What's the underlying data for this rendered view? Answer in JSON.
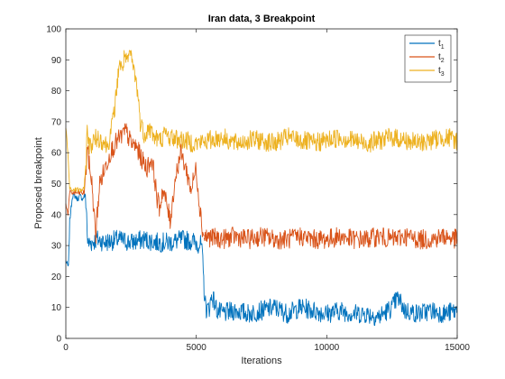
{
  "chart_data": {
    "type": "line",
    "title": "Iran data, 3 Breakpoint",
    "xlabel": "Iterations",
    "ylabel": "Proposed breakpoint",
    "xlim": [
      0,
      15000
    ],
    "ylim": [
      0,
      100
    ],
    "xticks": [
      0,
      5000,
      10000,
      15000
    ],
    "xtick_labels": [
      "0",
      "5000",
      "10000",
      "15000"
    ],
    "yticks": [
      0,
      10,
      20,
      30,
      40,
      50,
      60,
      70,
      80,
      90,
      100
    ],
    "ytick_labels": [
      "0",
      "10",
      "20",
      "30",
      "40",
      "50",
      "60",
      "70",
      "80",
      "90",
      "100"
    ],
    "grid": false,
    "legend_position": "top-right",
    "series": [
      {
        "name": "t1",
        "legend_base": "t",
        "legend_sub": "1",
        "color": "#0072BD",
        "segments": [
          {
            "x": [
              0,
              100,
              150,
              250,
              350,
              450,
              550,
              650,
              700,
              750,
              800,
              820,
              850,
              900,
              1000,
              1200,
              1500,
              2000,
              2500,
              3000,
              3500,
              4000,
              4500,
              5000,
              5200,
              5250,
              5300,
              5350,
              5400,
              5500,
              5600,
              5800,
              6000,
              6500,
              7000,
              7500,
              8000,
              8500,
              9000,
              9500,
              10000,
              10500,
              11000,
              11500,
              12000,
              12500,
              12700,
              12800,
              13000,
              13500,
              14000,
              14500,
              15000
            ],
            "y": [
              25,
              23,
              38,
              46,
              46,
              45,
              46,
              45,
              46,
              46,
              40,
              34,
              30,
              31,
              31,
              32,
              31,
              32,
              31,
              32,
              31,
              31,
              32,
              31,
              30,
              24,
              16,
              11,
              9,
              10,
              14,
              9,
              8,
              9,
              8,
              9,
              10,
              8,
              10,
              9,
              8,
              9,
              8,
              8,
              7,
              10,
              13,
              12,
              9,
              8,
              9,
              8,
              9
            ]
          }
        ]
      },
      {
        "name": "t2",
        "legend_base": "t",
        "legend_sub": "2",
        "color": "#D95319",
        "segments": [
          {
            "x": [
              0,
              80,
              150,
              250,
              400,
              550,
              700,
              780,
              820,
              900,
              1000,
              1100,
              1150,
              1200,
              1300,
              1500,
              1700,
              1900,
              2100,
              2300,
              2500,
              2700,
              2900,
              3100,
              3300,
              3400,
              3500,
              3600,
              3700,
              3850,
              4000,
              4200,
              4400,
              4600,
              4800,
              5000,
              5100,
              5200,
              5250,
              5300
            ],
            "y": [
              44,
              40,
              47,
              47,
              47,
              47,
              47,
              55,
              62,
              56,
              50,
              38,
              33,
              40,
              50,
              55,
              60,
              63,
              65,
              67,
              63,
              62,
              58,
              55,
              58,
              52,
              45,
              42,
              48,
              44,
              38,
              52,
              60,
              55,
              48,
              55,
              45,
              38,
              34,
              33
            ]
          },
          {
            "x": [
              5300,
              6000,
              6500,
              7000,
              7500,
              8000,
              8500,
              9000,
              9500,
              10000,
              10500,
              11000,
              11500,
              12000,
              12500,
              13000,
              13500,
              14000,
              14500,
              15000
            ],
            "y": [
              33,
              32,
              33,
              32,
              33,
              32,
              32,
              33,
              32,
              32,
              33,
              32,
              32,
              33,
              32,
              33,
              32,
              32,
              33,
              32
            ]
          }
        ]
      },
      {
        "name": "t3",
        "legend_base": "t",
        "legend_sub": "3",
        "color": "#EDB120",
        "segments": [
          {
            "x": [
              0,
              80,
              150,
              250,
              400,
              550,
              700,
              780,
              820,
              900,
              1000,
              1200,
              1400,
              1600,
              1800,
              1950,
              2050,
              2150,
              2250,
              2350,
              2450,
              2550,
              2650,
              2750,
              2850,
              3000,
              3200,
              3400,
              3600,
              3800,
              4000,
              4500,
              5000,
              5500,
              6000,
              6500,
              7000,
              7500,
              8000,
              8500,
              9000,
              9500,
              10000,
              10500,
              11000,
              11500,
              12000,
              12500,
              13000,
              13500,
              14000,
              14500,
              15000
            ],
            "y": [
              68,
              60,
              48,
              48,
              48,
              48,
              48,
              58,
              68,
              62,
              63,
              65,
              64,
              62,
              70,
              80,
              90,
              86,
              92,
              88,
              93,
              89,
              85,
              80,
              70,
              66,
              68,
              65,
              64,
              66,
              65,
              64,
              63,
              64,
              65,
              63,
              64,
              64,
              63,
              65,
              64,
              63,
              64,
              65,
              64,
              63,
              64,
              65,
              64,
              63,
              64,
              65,
              64
            ]
          }
        ]
      }
    ]
  }
}
